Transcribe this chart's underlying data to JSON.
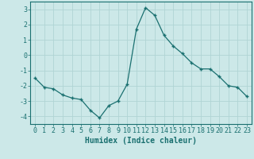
{
  "x": [
    0,
    1,
    2,
    3,
    4,
    5,
    6,
    7,
    8,
    9,
    10,
    11,
    12,
    13,
    14,
    15,
    16,
    17,
    18,
    19,
    20,
    21,
    22,
    23
  ],
  "y": [
    -1.5,
    -2.1,
    -2.2,
    -2.6,
    -2.8,
    -2.9,
    -3.6,
    -4.1,
    -3.3,
    -3.0,
    -1.9,
    1.7,
    3.1,
    2.6,
    1.3,
    0.6,
    0.1,
    -0.5,
    -0.9,
    -0.9,
    -1.4,
    -2.0,
    -2.1,
    -2.7
  ],
  "line_color": "#1a7070",
  "marker": "+",
  "marker_size": 3,
  "background_color": "#cce8e8",
  "grid_color": "#b0d4d4",
  "xlabel": "Humidex (Indice chaleur)",
  "xlim": [
    -0.5,
    23.5
  ],
  "ylim": [
    -4.5,
    3.5
  ],
  "yticks": [
    -4,
    -3,
    -2,
    -1,
    0,
    1,
    2,
    3
  ],
  "xticks": [
    0,
    1,
    2,
    3,
    4,
    5,
    6,
    7,
    8,
    9,
    10,
    11,
    12,
    13,
    14,
    15,
    16,
    17,
    18,
    19,
    20,
    21,
    22,
    23
  ],
  "xtick_labels": [
    "0",
    "1",
    "2",
    "3",
    "4",
    "5",
    "6",
    "7",
    "8",
    "9",
    "10",
    "11",
    "12",
    "13",
    "14",
    "15",
    "16",
    "17",
    "18",
    "19",
    "20",
    "21",
    "22",
    "23"
  ],
  "axis_color": "#1a7070",
  "tick_color": "#1a7070",
  "label_color": "#1a7070",
  "label_fontsize": 7,
  "tick_fontsize": 6
}
